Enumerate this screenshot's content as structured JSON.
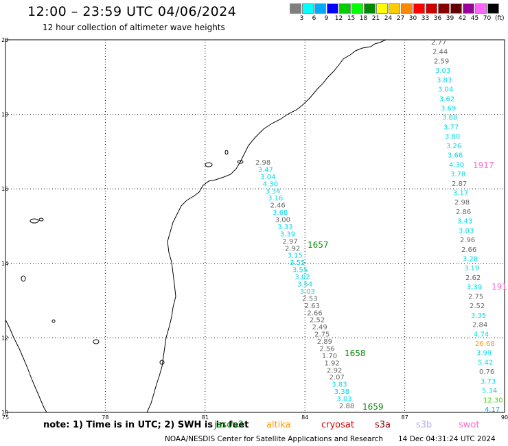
{
  "header": {
    "title": "12:00 – 23:59 UTC 04/06/2024",
    "subtitle": "12 hour collection of altimeter wave heights"
  },
  "legend": {
    "unit": "(ft)",
    "items": [
      {
        "label": "",
        "color": "#808080"
      },
      {
        "label": "3",
        "color": "#00ffff"
      },
      {
        "label": "6",
        "color": "#00aaff"
      },
      {
        "label": "9",
        "color": "#0000ff"
      },
      {
        "label": "12",
        "color": "#00cc00"
      },
      {
        "label": "15",
        "color": "#00ff00"
      },
      {
        "label": "18",
        "color": "#008800"
      },
      {
        "label": "21",
        "color": "#ffff00"
      },
      {
        "label": "24",
        "color": "#ffcc00"
      },
      {
        "label": "27",
        "color": "#ff8800"
      },
      {
        "label": "30",
        "color": "#ff0000"
      },
      {
        "label": "33",
        "color": "#cc0000"
      },
      {
        "label": "36",
        "color": "#880000"
      },
      {
        "label": "39",
        "color": "#660000"
      },
      {
        "label": "42",
        "color": "#990099"
      },
      {
        "label": "45",
        "color": "#ff66ff"
      },
      {
        "label": "70",
        "color": "#000000"
      }
    ]
  },
  "map": {
    "lon_ticks": [
      "75",
      "78",
      "81",
      "84",
      "87",
      "90"
    ],
    "lat_ticks": [
      "20",
      "18",
      "16",
      "14",
      "12",
      "10"
    ],
    "lon_range": [
      75,
      90
    ],
    "lat_range": [
      10,
      20
    ],
    "colors": {
      "gray": "#666666",
      "cyan": "#00d8e8",
      "green": "#008800",
      "pink": "#ff66cc",
      "orange": "#ff9900",
      "lgreen": "#44dd00",
      "blue": "#00aaff"
    },
    "track_a": [
      {
        "v": "2.98",
        "c": "gray"
      },
      {
        "v": "3.47",
        "c": "cyan"
      },
      {
        "v": "3.04",
        "c": "cyan"
      },
      {
        "v": "4.30",
        "c": "cyan"
      },
      {
        "v": "3.34",
        "c": "cyan"
      },
      {
        "v": "3.16",
        "c": "cyan"
      },
      {
        "v": "2.46",
        "c": "gray"
      },
      {
        "v": "3.68",
        "c": "cyan"
      },
      {
        "v": "3.00",
        "c": "gray"
      },
      {
        "v": "3.33",
        "c": "cyan"
      },
      {
        "v": "3.39",
        "c": "cyan"
      },
      {
        "v": "2.97",
        "c": "gray"
      },
      {
        "v": "2.92",
        "c": "gray"
      },
      {
        "v": "3.15",
        "c": "cyan"
      },
      {
        "v": "3.55",
        "c": "cyan"
      },
      {
        "v": "3.55",
        "c": "cyan"
      },
      {
        "v": "3.02",
        "c": "cyan"
      },
      {
        "v": "3.54",
        "c": "cyan"
      },
      {
        "v": "3.03",
        "c": "cyan"
      },
      {
        "v": "2.53",
        "c": "gray"
      },
      {
        "v": "2.63",
        "c": "gray"
      },
      {
        "v": "2.66",
        "c": "gray"
      },
      {
        "v": "2.52",
        "c": "gray"
      },
      {
        "v": "2.49",
        "c": "gray"
      },
      {
        "v": "2.75",
        "c": "gray"
      },
      {
        "v": "2.89",
        "c": "gray"
      },
      {
        "v": "2.56",
        "c": "gray"
      },
      {
        "v": "1.70",
        "c": "gray"
      },
      {
        "v": "1.92",
        "c": "gray"
      },
      {
        "v": "2.92",
        "c": "gray"
      },
      {
        "v": "2.07",
        "c": "gray"
      },
      {
        "v": "3.83",
        "c": "cyan"
      },
      {
        "v": "3.38",
        "c": "cyan"
      },
      {
        "v": "3.03",
        "c": "cyan"
      },
      {
        "v": "2.88",
        "c": "gray"
      }
    ],
    "track_a_times": [
      {
        "t": "1657",
        "c": "green"
      },
      {
        "t": "1658",
        "c": "green"
      },
      {
        "t": "1659",
        "c": "green"
      }
    ],
    "track_b": [
      {
        "v": "2.77",
        "c": "gray"
      },
      {
        "v": "2.44",
        "c": "gray"
      },
      {
        "v": "2.59",
        "c": "gray"
      },
      {
        "v": "3.03",
        "c": "cyan"
      },
      {
        "v": "3.83",
        "c": "cyan"
      },
      {
        "v": "3.04",
        "c": "cyan"
      },
      {
        "v": "3.62",
        "c": "cyan"
      },
      {
        "v": "3.69",
        "c": "cyan"
      },
      {
        "v": "3.88",
        "c": "cyan"
      },
      {
        "v": "3.77",
        "c": "cyan"
      },
      {
        "v": "3.80",
        "c": "cyan"
      },
      {
        "v": "3.26",
        "c": "cyan"
      },
      {
        "v": "3.66",
        "c": "cyan"
      },
      {
        "v": "4.30",
        "c": "cyan"
      },
      {
        "v": "3.78",
        "c": "cyan"
      },
      {
        "v": "2.87",
        "c": "gray"
      },
      {
        "v": "3.17",
        "c": "cyan"
      },
      {
        "v": "2.98",
        "c": "gray"
      },
      {
        "v": "2.86",
        "c": "gray"
      },
      {
        "v": "3.43",
        "c": "cyan"
      },
      {
        "v": "3.03",
        "c": "cyan"
      },
      {
        "v": "2.96",
        "c": "gray"
      },
      {
        "v": "2.66",
        "c": "gray"
      },
      {
        "v": "3.28",
        "c": "cyan"
      },
      {
        "v": "3.19",
        "c": "cyan"
      },
      {
        "v": "2.62",
        "c": "gray"
      },
      {
        "v": "3.39",
        "c": "cyan"
      },
      {
        "v": "2.75",
        "c": "gray"
      },
      {
        "v": "2.52",
        "c": "gray"
      },
      {
        "v": "3.35",
        "c": "cyan"
      },
      {
        "v": "2.84",
        "c": "gray"
      },
      {
        "v": "4.74",
        "c": "cyan"
      },
      {
        "v": "26.68",
        "c": "orange"
      },
      {
        "v": "3.99",
        "c": "cyan"
      },
      {
        "v": "5.42",
        "c": "cyan"
      },
      {
        "v": "0.76",
        "c": "gray"
      },
      {
        "v": "3.73",
        "c": "cyan"
      },
      {
        "v": "5.34",
        "c": "cyan"
      },
      {
        "v": "12.30",
        "c": "lgreen"
      },
      {
        "v": "4.17",
        "c": "blue"
      }
    ],
    "track_b_times": [
      {
        "t": "1917",
        "c": "pink"
      },
      {
        "t": "191",
        "c": "pink"
      }
    ]
  },
  "footer": {
    "note": "note: 1) Time is in UTC; 2) SWH is in feet",
    "satellites": [
      {
        "name": "jason3",
        "color": "#008800"
      },
      {
        "name": "altika",
        "color": "#ff9900"
      },
      {
        "name": "cryosat",
        "color": "#dd0000"
      },
      {
        "name": "s3a",
        "color": "#880000"
      },
      {
        "name": "s3b",
        "color": "#bbaaee"
      },
      {
        "name": "swot",
        "color": "#ff66cc"
      }
    ],
    "credit": "NOAA/NESDIS Center for Satellite Applications and Research",
    "timestamp": "14 Dec 04:31:24 UTC 2024"
  }
}
